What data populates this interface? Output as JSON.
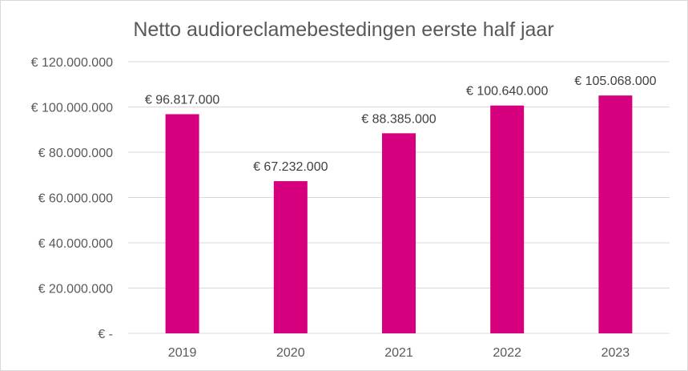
{
  "chart_data": {
    "type": "bar",
    "title": "Netto audioreclamebestedingen eerste half jaar",
    "xlabel": "",
    "ylabel": "",
    "categories": [
      "2019",
      "2020",
      "2021",
      "2022",
      "2023"
    ],
    "values": [
      96817000,
      67232000,
      88385000,
      100640000,
      105068000
    ],
    "data_labels": [
      "€ 96.817.000",
      "€ 67.232.000",
      "€ 88.385.000",
      "€ 100.640.000",
      "€ 105.068.000"
    ],
    "ylim": [
      0,
      120000000
    ],
    "y_ticks": [
      0,
      20000000,
      40000000,
      60000000,
      80000000,
      100000000,
      120000000
    ],
    "y_tick_labels": [
      "€ -",
      "€ 20.000.000",
      "€ 40.000.000",
      "€ 60.000.000",
      "€ 80.000.000",
      "€ 100.000.000",
      "€ 120.000.000"
    ],
    "grid": true,
    "legend": "none",
    "bar_color": "#D6007F"
  }
}
